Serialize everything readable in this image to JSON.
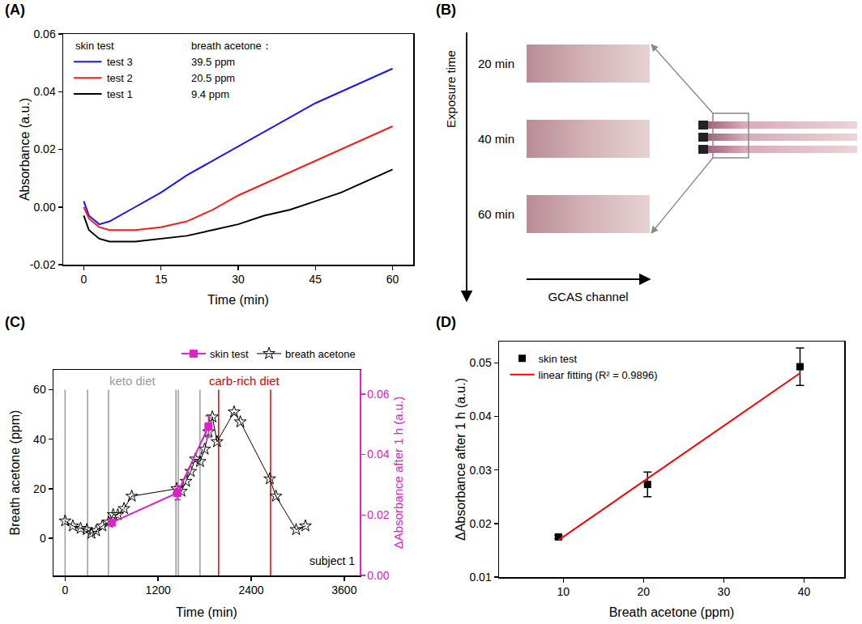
{
  "chart_data": [
    {
      "panel_label": "(A)",
      "type": "line",
      "grid": false,
      "legend": "upper left",
      "x_label": "Time (min)",
      "y_label": "Absorbance (a.u.)",
      "legend_title": "skin test",
      "legend_note_title": "breath acetone：",
      "x": [
        0,
        1,
        3,
        5,
        10,
        15,
        20,
        25,
        30,
        35,
        40,
        45,
        50,
        55,
        60
      ],
      "series": [
        {
          "name": "test 3",
          "note": "39.5 ppm",
          "color": "#1515ff",
          "values": [
            0.002,
            -0.003,
            -0.006,
            -0.005,
            0.0,
            0.005,
            0.011,
            0.016,
            0.021,
            0.026,
            0.031,
            0.036,
            0.04,
            0.044,
            0.048
          ]
        },
        {
          "name": "test 2",
          "note": "20.5 ppm",
          "color": "#ff1a1a",
          "values": [
            0.0,
            -0.004,
            -0.007,
            -0.008,
            -0.008,
            -0.007,
            -0.005,
            -0.001,
            0.004,
            0.008,
            0.012,
            0.016,
            0.02,
            0.024,
            0.028
          ]
        },
        {
          "name": "test 1",
          "note": "9.4 ppm",
          "color": "#000000",
          "values": [
            -0.003,
            -0.008,
            -0.011,
            -0.012,
            -0.012,
            -0.011,
            -0.01,
            -0.008,
            -0.006,
            -0.003,
            -0.001,
            0.002,
            0.005,
            0.009,
            0.013
          ]
        }
      ],
      "xlim": [
        -4,
        64
      ],
      "xticks": [
        0,
        15,
        30,
        45,
        60
      ],
      "ylim": [
        -0.02,
        0.06
      ],
      "yticks": [
        -0.02,
        {
          "value": 0,
          "label": "0.00"
        },
        0.02,
        0.04,
        0.06
      ]
    },
    {
      "panel_label": "(C)",
      "type": "line",
      "grid": false,
      "legend": "top",
      "x_label": "Time (min)",
      "y_label": "Breath acetone (ppm)",
      "y2_label": "ΔAbsorbance after 1 h (a.u.)",
      "series": [
        {
          "name": "skin test",
          "axis": "y2",
          "color": "#e020c8",
          "marker": "square",
          "x": [
            600,
            1450,
            1850
          ],
          "values": [
            0.0175,
            0.0273,
            0.0493
          ],
          "error": [
            0.0003,
            0.0023,
            0.0035
          ]
        },
        {
          "name": "breath acetone",
          "color": "#000000",
          "marker": "star-open",
          "x": [
            0,
            100,
            200,
            280,
            340,
            400,
            480,
            560,
            620,
            680,
            760,
            860,
            1440,
            1500,
            1560,
            1620,
            1680,
            1740,
            1800,
            1850,
            1900,
            1960,
            2180,
            2260,
            2640,
            2720,
            2980,
            3100
          ],
          "values": [
            7,
            5,
            4,
            3.5,
            2,
            3,
            5,
            6.5,
            9.5,
            9.5,
            12,
            17,
            20,
            19,
            23,
            27,
            32,
            31,
            36,
            43,
            49,
            39,
            51,
            47,
            24,
            17,
            3.5,
            5
          ]
        }
      ],
      "periods": [
        {
          "label": "keto diet",
          "color": "#9a9a9a",
          "times": [
            0,
            290,
            560,
            1430,
            1460,
            1740
          ]
        },
        {
          "label": "carb-rich diet",
          "color": "#e00000",
          "times": [
            1980,
            2650
          ]
        }
      ],
      "annotations": [
        "subject 1"
      ],
      "xlim": [
        -150,
        3800
      ],
      "xticks": [
        0,
        1200,
        2400,
        3600
      ],
      "ylim": [
        -15,
        68
      ],
      "yticks": [
        0,
        20,
        40,
        60
      ],
      "y2lim": [
        0,
        0.068
      ],
      "y2ticks": [
        {
          "value": 0,
          "label": "0.00"
        },
        0.02,
        0.04,
        0.06
      ]
    },
    {
      "panel_label": "(D)",
      "type": "scatter",
      "grid": false,
      "legend": "upper left",
      "x_label": "Breath acetone (ppm)",
      "y_label": "ΔAbsorbance after 1 h (a.u.)",
      "series": [
        {
          "name": "skin test",
          "type": "scatter",
          "color": "#000000",
          "marker": "square",
          "x": [
            9.4,
            20.5,
            39.5
          ],
          "values": [
            0.0175,
            0.0273,
            0.0493
          ],
          "error": [
            0.0003,
            0.0023,
            0.0035
          ]
        },
        {
          "name": "linear fitting (R² = 0.9896)",
          "type": "line",
          "color": "#ff0000",
          "x": [
            9.4,
            39.5
          ],
          "values": [
            0.0169,
            0.0481
          ]
        }
      ],
      "xlim": [
        2,
        45
      ],
      "xticks": [
        10,
        20,
        30,
        40
      ],
      "ylim": [
        0.01,
        0.054
      ],
      "yticks": [
        0.01,
        0.02,
        0.03,
        0.04,
        0.05
      ]
    }
  ],
  "diagram": {
    "panel_label": "(B)",
    "time_axis_label": "Exposure time",
    "images": [
      {
        "label": "20 min"
      },
      {
        "label": "40 min"
      },
      {
        "label": "60 min"
      }
    ],
    "channel_label": "GCAS channel"
  }
}
